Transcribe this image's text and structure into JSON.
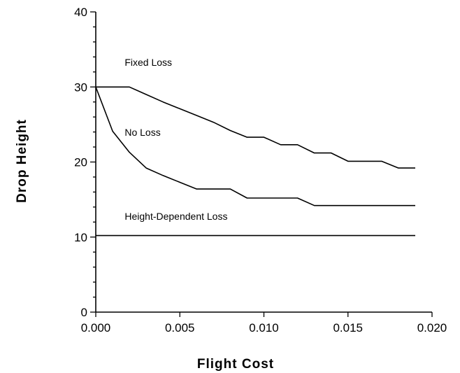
{
  "chart_data": {
    "type": "line",
    "xlabel": "Flight Cost",
    "ylabel": "Drop Height",
    "xlim": [
      0,
      0.02
    ],
    "ylim": [
      0,
      40
    ],
    "x_ticks": [
      "0.000",
      "0.005",
      "0.010",
      "0.015",
      "0.020"
    ],
    "y_ticks": [
      "0",
      "10",
      "20",
      "30",
      "40"
    ],
    "grid": false,
    "legend": "none",
    "series": [
      {
        "name": "Fixed Loss",
        "x": [
          0,
          0.002,
          0.003,
          0.004,
          0.005,
          0.006,
          0.007,
          0.008,
          0.009,
          0.01,
          0.011,
          0.012,
          0.013,
          0.014,
          0.015,
          0.016,
          0.017,
          0.018,
          0.019
        ],
        "y": [
          30,
          30,
          29,
          28,
          27.1,
          26.2,
          25.3,
          24.2,
          23.3,
          23.3,
          22.3,
          22.3,
          21.2,
          21.2,
          20.1,
          20.1,
          20.1,
          19.2,
          19.2
        ]
      },
      {
        "name": "No Loss",
        "x": [
          0,
          0.001,
          0.002,
          0.003,
          0.004,
          0.005,
          0.006,
          0.007,
          0.008,
          0.009,
          0.01,
          0.011,
          0.012,
          0.013,
          0.014,
          0.015,
          0.016,
          0.017,
          0.018,
          0.019
        ],
        "y": [
          30,
          24.1,
          21.3,
          19.2,
          18.2,
          17.3,
          16.4,
          16.4,
          16.4,
          15.2,
          15.2,
          15.2,
          15.2,
          14.2,
          14.2,
          14.2,
          14.2,
          14.2,
          14.2,
          14.2
        ]
      },
      {
        "name": "Height-Dependent Loss",
        "x": [
          0,
          0.019
        ],
        "y": [
          10.2,
          10.2
        ]
      }
    ]
  }
}
